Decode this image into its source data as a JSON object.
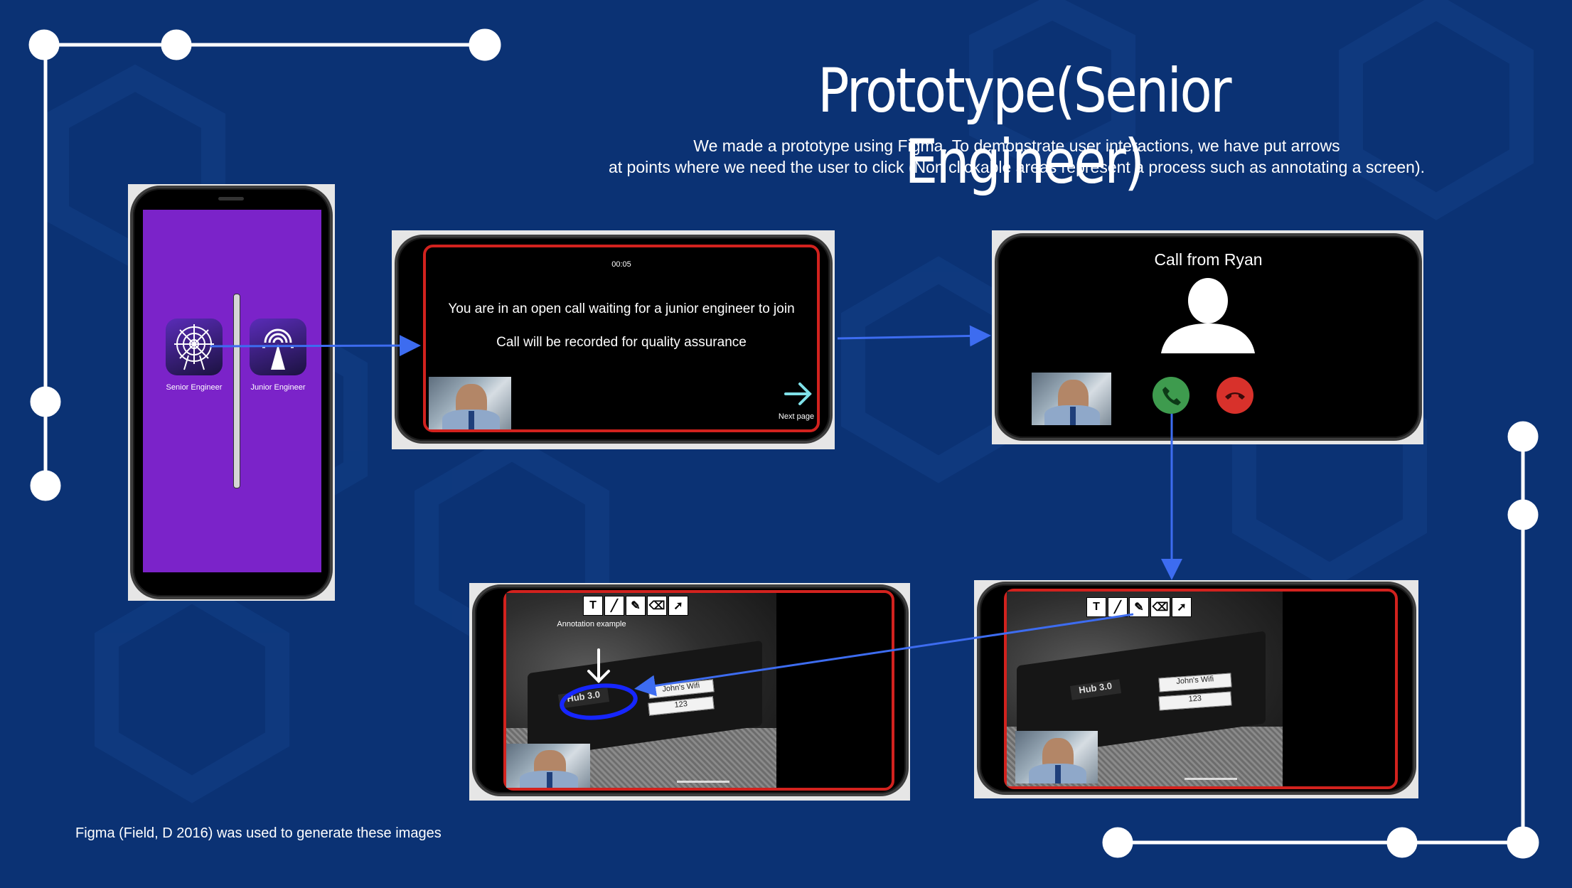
{
  "header": {
    "title": "Prototype(Senior Engineer)",
    "subtitle_line1": "We made a prototype using Figma. To demonstrate user interactions, we have put arrows",
    "subtitle_line2": "at points where we need the user to click (Non clickable areas represent a process such as annotating a screen)."
  },
  "screen1": {
    "senior_label": "Senior Engineer",
    "junior_label": "Junior Engineer",
    "background_color": "#7b23c9"
  },
  "screen2": {
    "timer": "00:05",
    "waiting_text": "You are in an open call waiting for a junior engineer to join",
    "recorded_text": "Call will be recorded for quality assurance",
    "next_label": "Next page"
  },
  "screen3": {
    "caller_text": "Call from Ryan",
    "accept_color": "#3e9b4e",
    "decline_color": "#d8312b"
  },
  "screen4": {
    "annotation_label": "Annotation example",
    "hub_label": "Hub 3.0",
    "wifi_label": "John's Wifi",
    "number_label": "123"
  },
  "screen5": {
    "hub_label": "Hub 3.0",
    "wifi_label": "John's Wifi",
    "number_label": "123"
  },
  "footer": {
    "caption": "Figma (Field, D 2016) was used to generate these images"
  },
  "colors": {
    "background": "#0b3274",
    "arrow": "#3d6cf0",
    "red_outline": "#d2221e"
  }
}
